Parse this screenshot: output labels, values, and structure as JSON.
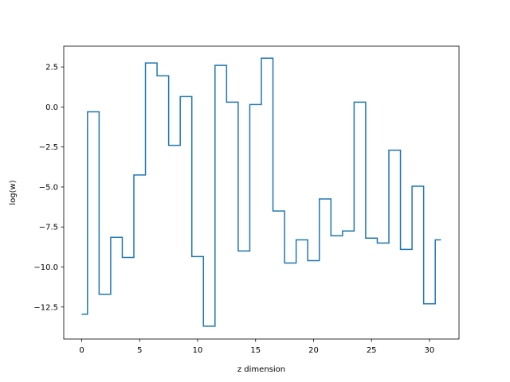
{
  "chart_data": {
    "type": "line",
    "drawstyle": "steps-mid",
    "title": "",
    "xlabel": "z dimension",
    "ylabel": "log(w)",
    "xlim": [
      -1.55,
      32.55
    ],
    "ylim": [
      -14.5,
      3.8
    ],
    "xticks": [
      0,
      5,
      10,
      15,
      20,
      25,
      30
    ],
    "xtick_labels": [
      "0",
      "5",
      "10",
      "15",
      "20",
      "25",
      "30"
    ],
    "yticks": [
      -12.5,
      -10.0,
      -7.5,
      -5.0,
      -2.5,
      0.0,
      2.5
    ],
    "ytick_labels": [
      "−12.5",
      "−10.0",
      "−7.5",
      "−5.0",
      "−2.5",
      "0.0",
      "2.5"
    ],
    "grid": false,
    "series": [
      {
        "color": "#1f77b4",
        "x": [
          0,
          1,
          2,
          3,
          4,
          5,
          6,
          7,
          8,
          9,
          10,
          11,
          12,
          13,
          14,
          15,
          16,
          17,
          18,
          19,
          20,
          21,
          22,
          23,
          24,
          25,
          26,
          27,
          28,
          29,
          30,
          31
        ],
        "y": [
          -12.95,
          -0.3,
          -11.7,
          -8.15,
          -9.4,
          -4.25,
          2.75,
          1.95,
          -2.4,
          0.65,
          -9.35,
          -13.7,
          2.6,
          0.3,
          -9.0,
          0.15,
          3.05,
          -6.5,
          -9.75,
          -8.3,
          -9.6,
          -5.75,
          -8.05,
          -7.75,
          0.3,
          -8.2,
          -8.5,
          -2.7,
          -8.9,
          -4.95,
          -12.3,
          -8.3
        ]
      }
    ]
  }
}
